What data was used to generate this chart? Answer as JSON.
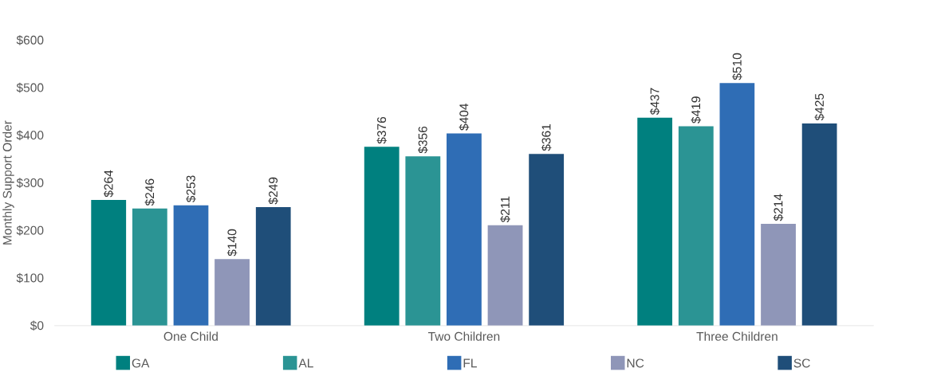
{
  "chart_data": {
    "type": "bar",
    "ylabel": "Monthly Support Order",
    "categories": [
      "One Child",
      "Two Children",
      "Three Children"
    ],
    "series": [
      {
        "name": "GA",
        "color": "#00807f",
        "values": [
          264,
          376,
          437
        ],
        "value_labels": [
          "$264",
          "$376",
          "$437"
        ]
      },
      {
        "name": "AL",
        "color": "#2b9494",
        "values": [
          246,
          356,
          419
        ],
        "value_labels": [
          "$246",
          "$356",
          "$419"
        ]
      },
      {
        "name": "FL",
        "color": "#2f6db5",
        "values": [
          253,
          404,
          510
        ],
        "value_labels": [
          "$253",
          "$404",
          "$510"
        ]
      },
      {
        "name": "NC",
        "color": "#8f96b8",
        "values": [
          140,
          211,
          214
        ],
        "value_labels": [
          "$140",
          "$211",
          "$214"
        ]
      },
      {
        "name": "SC",
        "color": "#1f4e79",
        "values": [
          249,
          361,
          425
        ],
        "value_labels": [
          "$249",
          "$361",
          "$425"
        ]
      }
    ],
    "ylim": [
      0,
      600
    ],
    "yticks": [
      {
        "value": 0,
        "label": "$0"
      },
      {
        "value": 100,
        "label": "$100"
      },
      {
        "value": 200,
        "label": "$200"
      },
      {
        "value": 300,
        "label": "$300"
      },
      {
        "value": 400,
        "label": "$400"
      },
      {
        "value": 500,
        "label": "$500"
      },
      {
        "value": 600,
        "label": "$600"
      }
    ],
    "legend": "bottom"
  }
}
